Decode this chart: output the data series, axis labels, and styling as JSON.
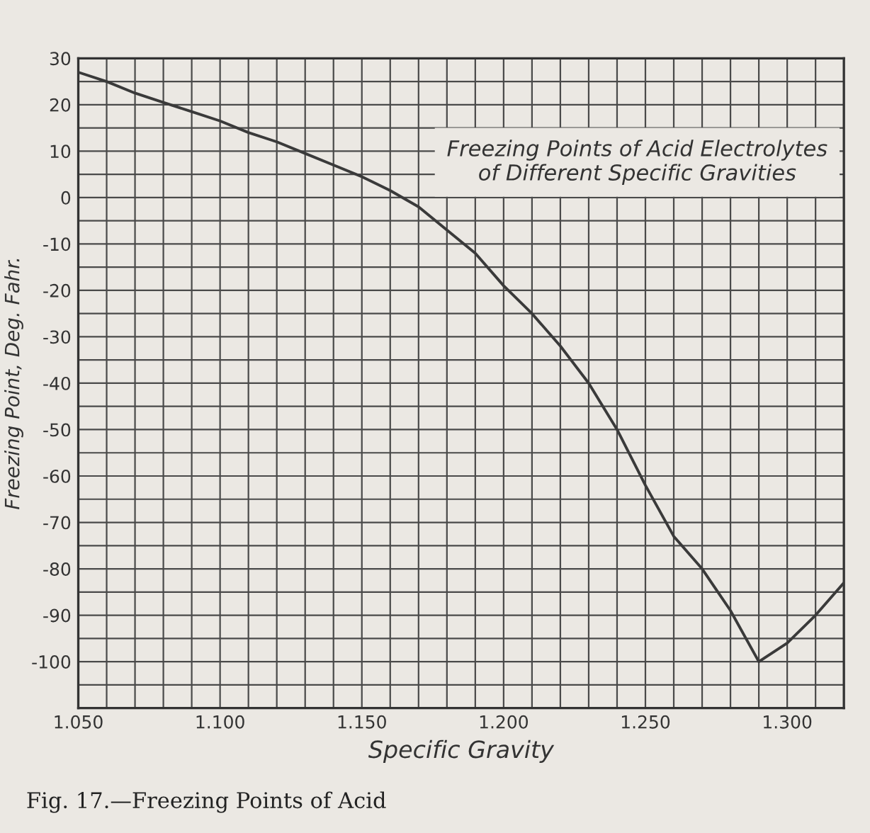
{
  "chart_data": {
    "type": "line",
    "title": "Freezing Points of Acid Electrolytes\nof Different Specific Gravities",
    "xlabel": "Specific Gravity",
    "ylabel": "Freezing Point, Deg. Fahr.",
    "annotations": [
      "Fig. 17.—Freezing Points of Acid"
    ],
    "x": [
      1.05,
      1.06,
      1.07,
      1.08,
      1.09,
      1.1,
      1.11,
      1.12,
      1.13,
      1.14,
      1.15,
      1.16,
      1.17,
      1.18,
      1.19,
      1.2,
      1.21,
      1.22,
      1.23,
      1.24,
      1.25,
      1.26,
      1.27,
      1.28,
      1.29,
      1.3,
      1.31,
      1.32
    ],
    "series": [
      {
        "color": "#3a3a3a",
        "values": [
          27,
          25,
          22.5,
          20.5,
          18.5,
          16.5,
          14,
          12,
          9.5,
          7,
          4.5,
          1.5,
          -2,
          -7,
          -12,
          -19,
          -25,
          -32,
          -40,
          -50,
          -62,
          -73,
          -80,
          -89,
          -100,
          -96,
          -90,
          -83
        ]
      }
    ],
    "xlim": [
      1.05,
      1.32
    ],
    "ylim": [
      -110,
      30
    ],
    "xticks": [
      {
        "value": 1.05,
        "label": "1.050"
      },
      {
        "value": 1.06,
        "label": null
      },
      {
        "value": 1.07,
        "label": null
      },
      {
        "value": 1.08,
        "label": null
      },
      {
        "value": 1.09,
        "label": null
      },
      {
        "value": 1.1,
        "label": "1.100"
      },
      {
        "value": 1.11,
        "label": null
      },
      {
        "value": 1.12,
        "label": null
      },
      {
        "value": 1.13,
        "label": null
      },
      {
        "value": 1.14,
        "label": null
      },
      {
        "value": 1.15,
        "label": "1.150"
      },
      {
        "value": 1.16,
        "label": null
      },
      {
        "value": 1.17,
        "label": null
      },
      {
        "value": 1.18,
        "label": null
      },
      {
        "value": 1.19,
        "label": null
      },
      {
        "value": 1.2,
        "label": "1.200"
      },
      {
        "value": 1.21,
        "label": null
      },
      {
        "value": 1.22,
        "label": null
      },
      {
        "value": 1.23,
        "label": null
      },
      {
        "value": 1.24,
        "label": null
      },
      {
        "value": 1.25,
        "label": "1.250"
      },
      {
        "value": 1.26,
        "label": null
      },
      {
        "value": 1.27,
        "label": null
      },
      {
        "value": 1.28,
        "label": null
      },
      {
        "value": 1.29,
        "label": null
      },
      {
        "value": 1.3,
        "label": "1.300"
      },
      {
        "value": 1.31,
        "label": null
      },
      {
        "value": 1.32,
        "label": null
      }
    ],
    "yticks": [
      {
        "value": -110,
        "label": null
      },
      {
        "value": -105,
        "label": null
      },
      -100,
      {
        "value": -95,
        "label": null
      },
      -90,
      {
        "value": -85,
        "label": null
      },
      -80,
      {
        "value": -75,
        "label": null
      },
      -70,
      {
        "value": -65,
        "label": null
      },
      -60,
      {
        "value": -55,
        "label": null
      },
      -50,
      {
        "value": -45,
        "label": null
      },
      -40,
      {
        "value": -35,
        "label": null
      },
      -30,
      {
        "value": -25,
        "label": null
      },
      -20,
      {
        "value": -15,
        "label": null
      },
      -10,
      {
        "value": -5,
        "label": null
      },
      0,
      {
        "value": 5,
        "label": null
      },
      10,
      {
        "value": 15,
        "label": null
      },
      20,
      {
        "value": 25,
        "label": null
      },
      30
    ],
    "grid": true,
    "marker": "none",
    "line_style": "solid",
    "legend": false
  }
}
